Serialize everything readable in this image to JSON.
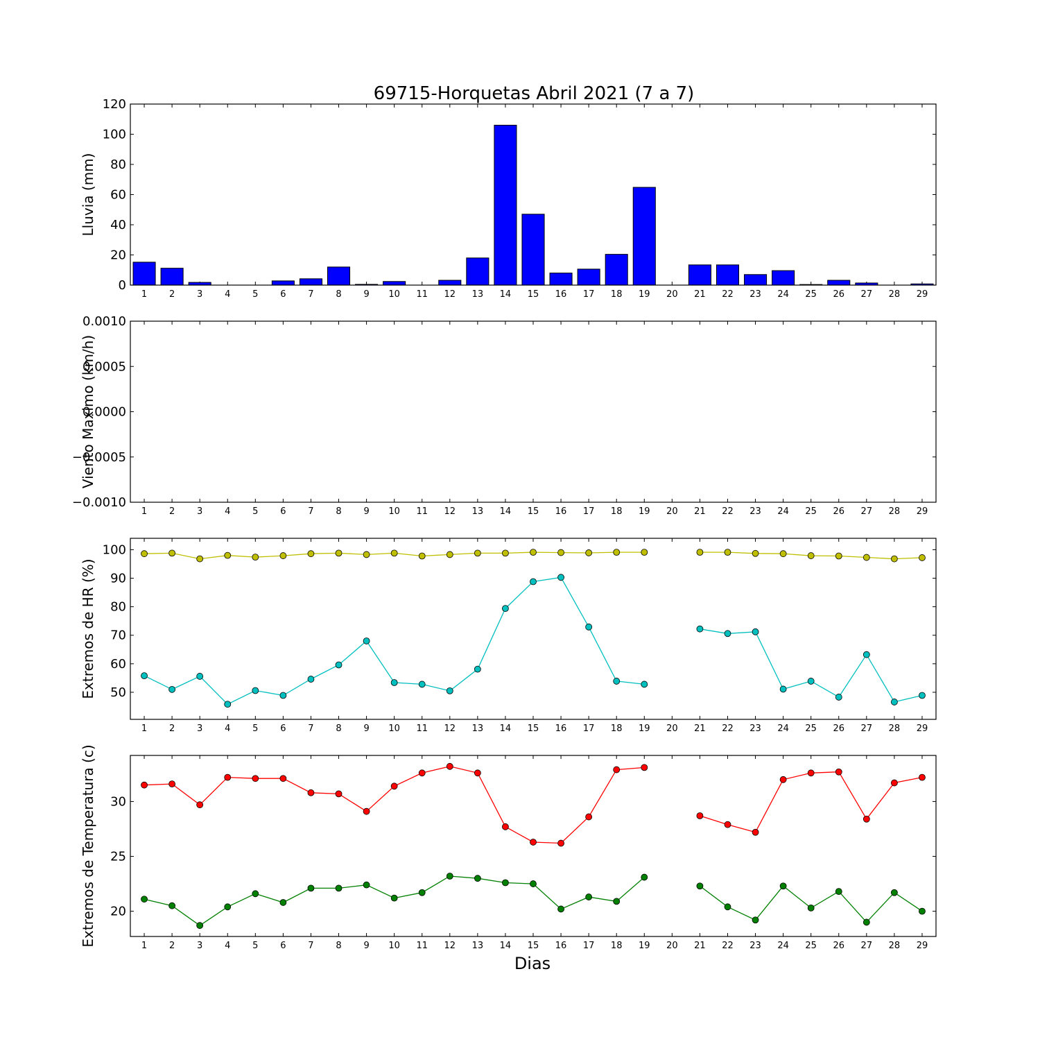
{
  "title": "69715-Horquetas Abril 2021  (7 a 7)",
  "xlabel": "Dias",
  "days": [
    "1",
    "2",
    "3",
    "4",
    "5",
    "6",
    "7",
    "8",
    "9",
    "10",
    "11",
    "12",
    "13",
    "14",
    "15",
    "16",
    "17",
    "18",
    "19",
    "20",
    "21",
    "22",
    "23",
    "24",
    "25",
    "26",
    "27",
    "28",
    "29"
  ],
  "colors": {
    "rain": "#0000ff",
    "hr_max": "#bfbf00",
    "hr_min": "#00bfbf",
    "temp_max": "#ff0000",
    "temp_min": "#008000"
  },
  "chart_data": [
    {
      "type": "bar",
      "ylabel": "Lluvia (mm)",
      "ylim": [
        0,
        120
      ],
      "yticks": [
        0,
        20,
        40,
        60,
        80,
        100,
        120
      ],
      "ytick_labels": [
        "0",
        "20",
        "40",
        "60",
        "80",
        "100",
        "120"
      ],
      "series": [
        {
          "values": [
            15.2,
            11.2,
            1.8,
            0,
            0,
            2.8,
            4.2,
            12.0,
            0.5,
            2.4,
            0,
            3.2,
            18.0,
            106.0,
            47.0,
            8.0,
            10.6,
            20.4,
            64.8,
            null,
            13.4,
            13.4,
            7.0,
            9.6,
            0.4,
            3.2,
            1.4,
            0,
            0.8
          ]
        }
      ]
    },
    {
      "type": "line",
      "ylabel": "Viento Maximo (km/h)",
      "ylim": [
        -0.001,
        0.001
      ],
      "yticks": [
        -0.001,
        -0.0005,
        0,
        0.0005,
        0.001
      ],
      "ytick_labels": [
        "−0.0010",
        "−0.0005",
        "0.0000",
        "0.0005",
        "0.0010"
      ],
      "series": []
    },
    {
      "type": "line",
      "ylabel": "Extremos de HR (%)",
      "ylim": [
        40.5,
        104
      ],
      "yticks": [
        50,
        60,
        70,
        80,
        90,
        100
      ],
      "ytick_labels": [
        "50",
        "60",
        "70",
        "80",
        "90",
        "100"
      ],
      "series": [
        {
          "values": [
            98.6,
            98.8,
            96.8,
            98.0,
            97.4,
            97.9,
            98.6,
            98.8,
            98.3,
            98.8,
            97.8,
            98.3,
            98.8,
            98.8,
            99.1,
            99.0,
            98.9,
            99.1,
            99.1,
            null,
            99.1,
            99.1,
            98.7,
            98.6,
            97.9,
            97.8,
            97.3,
            96.8,
            97.2
          ]
        },
        {
          "values": [
            55.8,
            51.0,
            55.6,
            45.8,
            50.6,
            48.9,
            54.6,
            59.6,
            68.0,
            53.4,
            52.8,
            50.5,
            58.1,
            79.4,
            88.8,
            90.3,
            72.9,
            53.9,
            52.8,
            null,
            72.2,
            70.6,
            71.2,
            51.1,
            53.9,
            48.3,
            63.2,
            46.6,
            48.9
          ]
        }
      ]
    },
    {
      "type": "line",
      "ylabel": "Extremos de Temperatura (c)",
      "ylim": [
        17.7,
        34.2
      ],
      "yticks": [
        20,
        25,
        30
      ],
      "ytick_labels": [
        "20",
        "25",
        "30"
      ],
      "series": [
        {
          "values": [
            31.5,
            31.6,
            29.7,
            32.2,
            32.1,
            32.1,
            30.8,
            30.7,
            29.1,
            31.4,
            32.6,
            33.2,
            32.6,
            27.7,
            26.3,
            26.2,
            28.6,
            32.9,
            33.1,
            null,
            28.7,
            27.9,
            27.2,
            32.0,
            32.6,
            32.7,
            28.4,
            31.7,
            32.2
          ]
        },
        {
          "values": [
            21.1,
            20.5,
            18.7,
            20.4,
            21.6,
            20.8,
            22.1,
            22.1,
            22.4,
            21.2,
            21.7,
            23.2,
            23.0,
            22.6,
            22.5,
            20.2,
            21.3,
            20.9,
            23.1,
            null,
            22.3,
            20.4,
            19.2,
            22.3,
            20.3,
            21.8,
            19.0,
            21.7,
            20.0
          ]
        }
      ]
    }
  ]
}
